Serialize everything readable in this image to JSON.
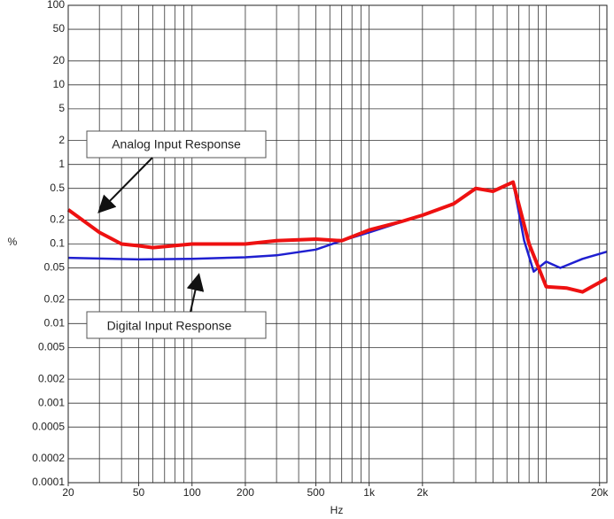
{
  "chart_data": {
    "type": "line",
    "x_label": "Hz",
    "y_label": "%",
    "xscale": "log",
    "yscale": "log",
    "grid": true,
    "xlim": [
      20,
      22000
    ],
    "ylim": [
      0.0001,
      100
    ],
    "xticks": [
      20,
      50,
      100,
      200,
      500,
      {
        "value": 1000,
        "label": "1k"
      },
      {
        "value": 2000,
        "label": "2k"
      },
      {
        "value": 20000,
        "label": "20k"
      }
    ],
    "xgrid": [
      20,
      30,
      40,
      50,
      60,
      70,
      80,
      90,
      100,
      200,
      300,
      400,
      500,
      600,
      700,
      800,
      900,
      1000,
      2000,
      3000,
      4000,
      5000,
      6000,
      7000,
      8000,
      9000,
      10000,
      20000
    ],
    "yticks": [
      100,
      50,
      20,
      10,
      5,
      2,
      1,
      0.5,
      0.2,
      0.1,
      0.05,
      0.02,
      0.01,
      0.005,
      0.002,
      0.001,
      0.0005,
      0.0002,
      0.0001
    ],
    "series": [
      {
        "name": "Digital Input Response",
        "color": "#1f1fd0",
        "x": [
          20,
          50,
          100,
          200,
          300,
          500,
          700,
          1000,
          2000,
          3000,
          4000,
          5000,
          6500,
          7500,
          8500,
          10000,
          12000,
          16000,
          22000
        ],
        "values": [
          0.067,
          0.064,
          0.065,
          0.068,
          0.072,
          0.085,
          0.11,
          0.14,
          0.23,
          0.32,
          0.5,
          0.46,
          0.6,
          0.11,
          0.045,
          0.06,
          0.05,
          0.065,
          0.08
        ]
      },
      {
        "name": "Analog Input Response",
        "color": "#ee1111",
        "x": [
          20,
          30,
          40,
          50,
          60,
          100,
          130,
          200,
          300,
          500,
          700,
          1000,
          1500,
          2000,
          3000,
          4000,
          5000,
          6500,
          8000,
          10000,
          13000,
          16000,
          22000
        ],
        "values": [
          0.27,
          0.14,
          0.1,
          0.095,
          0.09,
          0.1,
          0.1,
          0.1,
          0.11,
          0.115,
          0.11,
          0.15,
          0.19,
          0.23,
          0.32,
          0.5,
          0.46,
          0.6,
          0.1,
          0.029,
          0.028,
          0.025,
          0.037
        ]
      }
    ]
  }
}
